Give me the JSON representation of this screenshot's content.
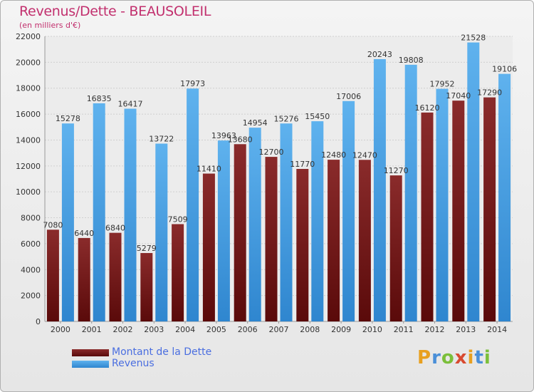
{
  "title": "Revenus/Dette - BEAUSOLEIL",
  "subtitle": "(en milliers d'€)",
  "logo": {
    "text": "Proxiti",
    "colors": [
      "#e8a020",
      "#4a8fd8",
      "#7bbf3a",
      "#d84a30",
      "#e8a020",
      "#4a8fd8",
      "#7bbf3a"
    ]
  },
  "legend": [
    {
      "label": "Montant de la Dette",
      "color": "#6e1a1a"
    },
    {
      "label": "Revenus",
      "color": "#4aa3e8"
    }
  ],
  "chart_data": {
    "type": "bar",
    "title": "Revenus/Dette - BEAUSOLEIL",
    "subtitle": "(en milliers d'€)",
    "categories": [
      "2000",
      "2001",
      "2002",
      "2003",
      "2004",
      "2005",
      "2006",
      "2007",
      "2008",
      "2009",
      "2010",
      "2011",
      "2012",
      "2013",
      "2014"
    ],
    "ylim": [
      0,
      22000
    ],
    "yticks": [
      0,
      2000,
      4000,
      6000,
      8000,
      10000,
      12000,
      14000,
      16000,
      18000,
      20000,
      22000
    ],
    "grid": true,
    "legend_position": "bottom-left",
    "series": [
      {
        "name": "Montant de la Dette",
        "color": "#7a1e1e",
        "values": [
          7080,
          6440,
          6840,
          5279,
          7509,
          11410,
          13680,
          12700,
          11770,
          12480,
          12470,
          11270,
          16120,
          17040,
          17290
        ],
        "labels": [
          "7080",
          "6440",
          "6840",
          "5279",
          "7509",
          "11410",
          "13680",
          "12700",
          "11770",
          "12480",
          "12470",
          "11270",
          "16120",
          "17040",
          "17290"
        ]
      },
      {
        "name": "Revenus",
        "color": "#4aa3e8",
        "values": [
          15278,
          16835,
          16417,
          13722,
          17973,
          13963,
          14954,
          15276,
          15450,
          17006,
          20243,
          19808,
          17952,
          21528,
          19106
        ],
        "labels": [
          "15278",
          "16835",
          "16417",
          "13722",
          "17973",
          "13963",
          "14954",
          "15276",
          "15450",
          "17006",
          "20243",
          "19808",
          "17952",
          "21528",
          "19106"
        ]
      }
    ]
  }
}
